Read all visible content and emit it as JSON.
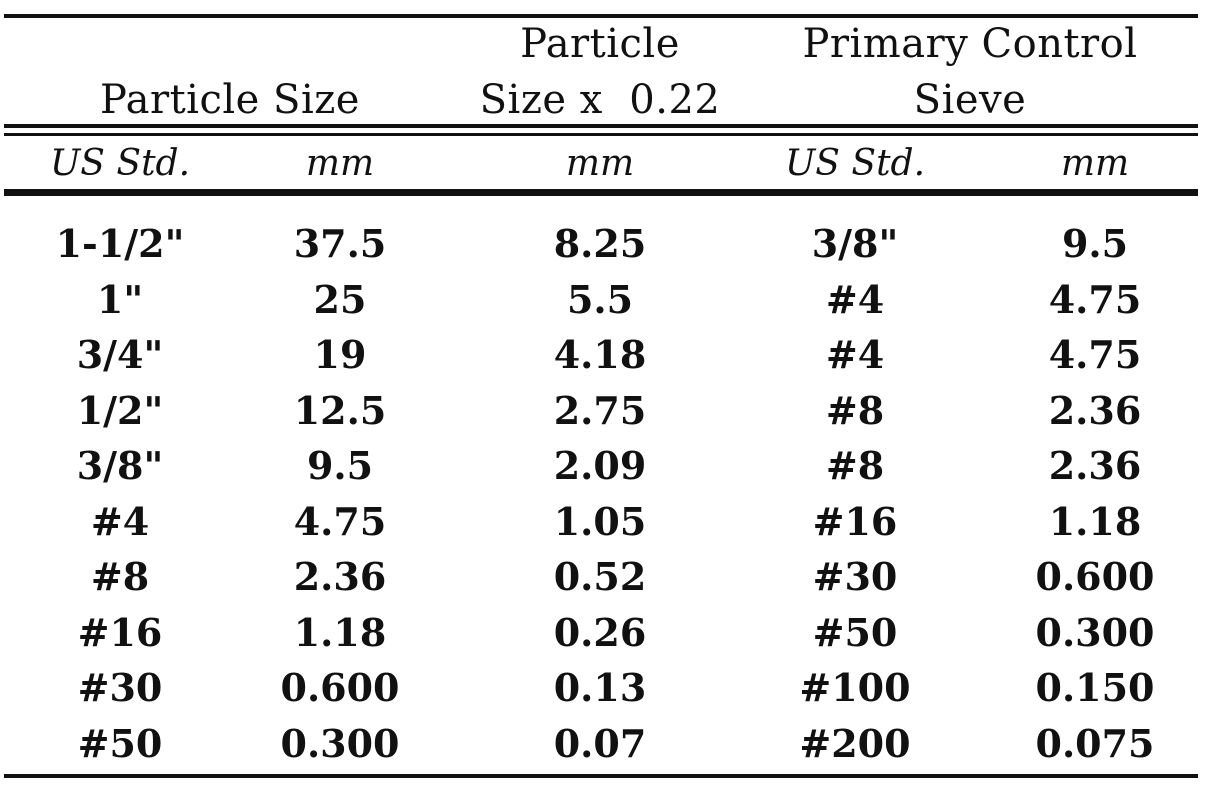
{
  "header": {
    "particle_size": "Particle Size",
    "scaled_line1": "Particle",
    "scaled_line2": "Size x  0.22",
    "control_line1": "Primary Control",
    "control_line2": "Sieve"
  },
  "subheader": {
    "us_std_1": "US Std.",
    "mm_1": "mm",
    "mm_2": "mm",
    "us_std_2": "US Std.",
    "mm_3": "mm"
  },
  "rows": [
    {
      "us": "1-1/2\"",
      "mm": "37.5",
      "scaled": "8.25",
      "sieve_us": "3/8\"",
      "sieve_mm": "9.5"
    },
    {
      "us": "1\"",
      "mm": "25",
      "scaled": "5.5",
      "sieve_us": "#4",
      "sieve_mm": "4.75"
    },
    {
      "us": "3/4\"",
      "mm": "19",
      "scaled": "4.18",
      "sieve_us": "#4",
      "sieve_mm": "4.75"
    },
    {
      "us": "1/2\"",
      "mm": "12.5",
      "scaled": "2.75",
      "sieve_us": "#8",
      "sieve_mm": "2.36"
    },
    {
      "us": "3/8\"",
      "mm": "9.5",
      "scaled": "2.09",
      "sieve_us": "#8",
      "sieve_mm": "2.36"
    },
    {
      "us": "#4",
      "mm": "4.75",
      "scaled": "1.05",
      "sieve_us": "#16",
      "sieve_mm": "1.18"
    },
    {
      "us": "#8",
      "mm": "2.36",
      "scaled": "0.52",
      "sieve_us": "#30",
      "sieve_mm": "0.600"
    },
    {
      "us": "#16",
      "mm": "1.18",
      "scaled": "0.26",
      "sieve_us": "#50",
      "sieve_mm": "0.300"
    },
    {
      "us": "#30",
      "mm": "0.600",
      "scaled": "0.13",
      "sieve_us": "#100",
      "sieve_mm": "0.150"
    },
    {
      "us": "#50",
      "mm": "0.300",
      "scaled": "0.07",
      "sieve_us": "#200",
      "sieve_mm": "0.075"
    }
  ]
}
